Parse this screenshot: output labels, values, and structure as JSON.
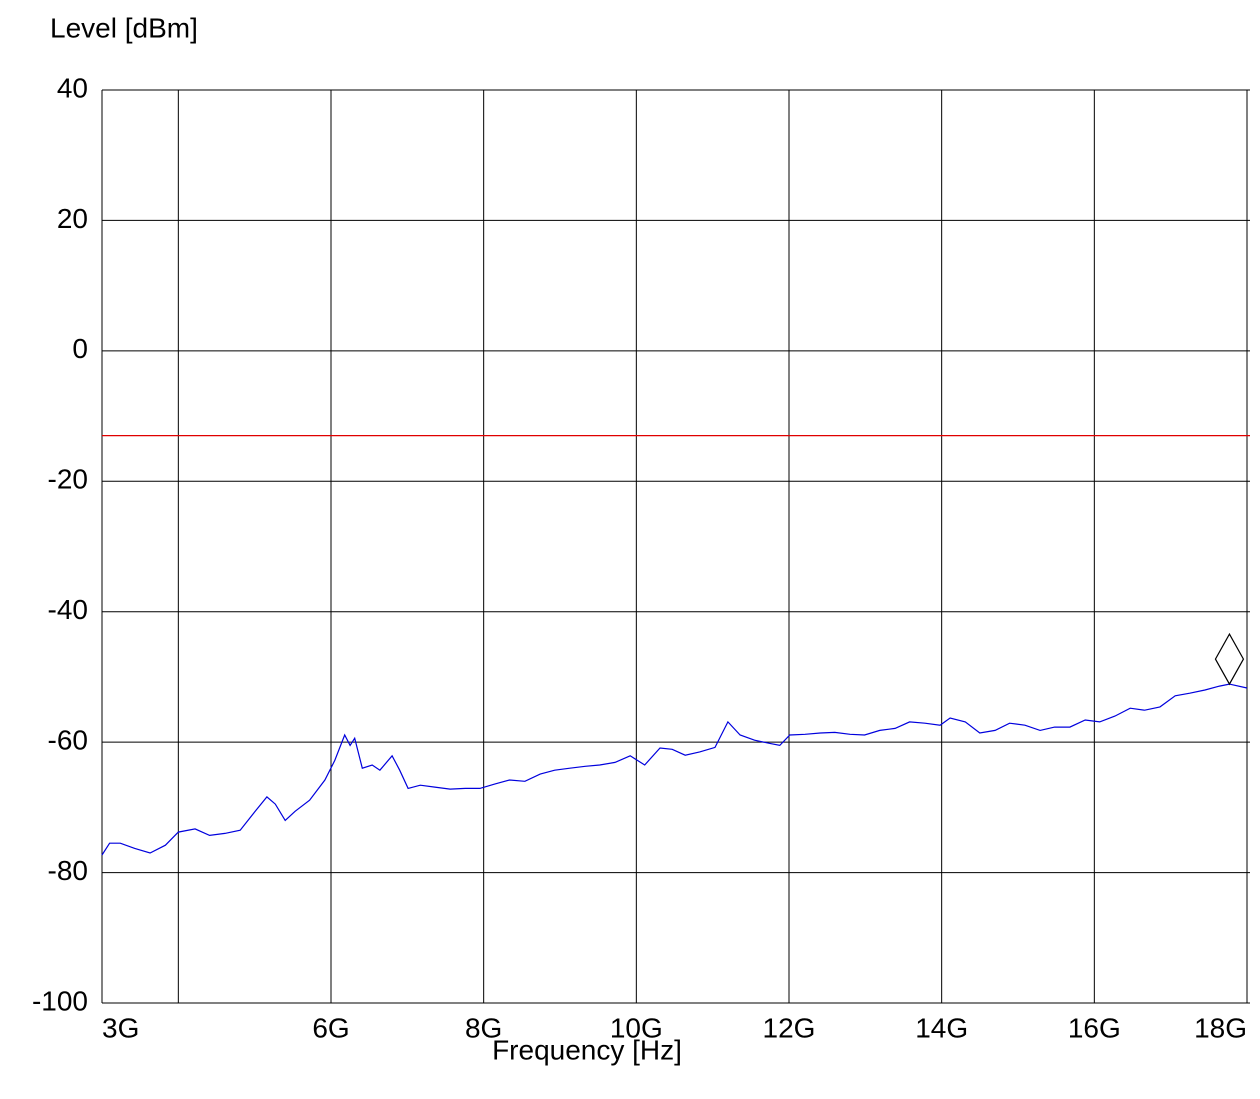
{
  "chart_data": {
    "type": "line",
    "ylabel": "Level [dBm]",
    "xlabel": "Frequency [Hz]",
    "xlim": [
      3000000000.0,
      18000000000.0
    ],
    "ylim": [
      -100,
      40
    ],
    "yticks": [
      40,
      20,
      0,
      -20,
      -40,
      -60,
      -80,
      -100
    ],
    "xticks": [
      {
        "value": 3000000000.0,
        "label": "3G"
      },
      {
        "value": 6000000000.0,
        "label": "6G"
      },
      {
        "value": 8000000000.0,
        "label": "8G"
      },
      {
        "value": 10000000000.0,
        "label": "10G"
      },
      {
        "value": 12000000000.0,
        "label": "12G"
      },
      {
        "value": 14000000000.0,
        "label": "14G"
      },
      {
        "value": 16000000000.0,
        "label": "16G"
      },
      {
        "value": 18000000000.0,
        "label": "18G"
      }
    ],
    "xgrid": [
      4000000000.0,
      6000000000.0,
      8000000000.0,
      10000000000.0,
      12000000000.0,
      14000000000.0,
      16000000000.0
    ],
    "grid": true,
    "limit_line": {
      "value": -13,
      "color": "#e00000"
    },
    "marker": {
      "x": 17770000000.0,
      "y": -51.1
    },
    "series": [
      {
        "color": "#0000dd",
        "x": [
          3000000000.0,
          3100000000.0,
          3240000000.0,
          3430000000.0,
          3630000000.0,
          3830000000.0,
          4000000000.0,
          4220000000.0,
          4410000000.0,
          4610000000.0,
          4810000000.0,
          5000000000.0,
          5160000000.0,
          5270000000.0,
          5400000000.0,
          5530000000.0,
          5720000000.0,
          5920000000.0,
          6050000000.0,
          6180000000.0,
          6250000000.0,
          6310000000.0,
          6410000000.0,
          6540000000.0,
          6640000000.0,
          6800000000.0,
          6900000000.0,
          7010000000.0,
          7170000000.0,
          7360000000.0,
          7560000000.0,
          7760000000.0,
          7950000000.0,
          8150000000.0,
          8340000000.0,
          8540000000.0,
          8740000000.0,
          8930000000.0,
          9130000000.0,
          9330000000.0,
          9520000000.0,
          9720000000.0,
          9920000000.0,
          10110000000.0,
          10310000000.0,
          10470000000.0,
          10640000000.0,
          10830000000.0,
          11030000000.0,
          11200000000.0,
          11360000000.0,
          11550000000.0,
          11750000000.0,
          11880000000.0,
          12010000000.0,
          12210000000.0,
          12410000000.0,
          12600000000.0,
          12800000000.0,
          12990000000.0,
          13190000000.0,
          13390000000.0,
          13580000000.0,
          13780000000.0,
          13980000000.0,
          14110000000.0,
          14310000000.0,
          14500000000.0,
          14700000000.0,
          14890000000.0,
          15090000000.0,
          15290000000.0,
          15480000000.0,
          15680000000.0,
          15880000000.0,
          16070000000.0,
          16270000000.0,
          16470000000.0,
          16660000000.0,
          16860000000.0,
          17060000000.0,
          17250000000.0,
          17450000000.0,
          17640000000.0,
          17770000000.0,
          18000000000.0
        ],
        "values": [
          -77.3,
          -75.5,
          -75.5,
          -76.3,
          -77.0,
          -75.8,
          -73.8,
          -73.3,
          -74.3,
          -74.0,
          -73.5,
          -70.7,
          -68.4,
          -69.5,
          -72.0,
          -70.6,
          -68.9,
          -65.8,
          -62.8,
          -58.9,
          -60.5,
          -59.4,
          -64.0,
          -63.5,
          -64.3,
          -62.1,
          -64.3,
          -67.1,
          -66.6,
          -66.9,
          -67.2,
          -67.1,
          -67.1,
          -66.4,
          -65.8,
          -66.0,
          -64.9,
          -64.3,
          -64.0,
          -63.7,
          -63.5,
          -63.1,
          -62.1,
          -63.5,
          -60.9,
          -61.1,
          -62.0,
          -61.5,
          -60.8,
          -56.9,
          -58.9,
          -59.7,
          -60.2,
          -60.5,
          -58.9,
          -58.8,
          -58.6,
          -58.5,
          -58.8,
          -58.9,
          -58.2,
          -57.9,
          -56.9,
          -57.1,
          -57.4,
          -56.3,
          -56.9,
          -58.6,
          -58.2,
          -57.1,
          -57.4,
          -58.2,
          -57.7,
          -57.7,
          -56.6,
          -56.9,
          -56.0,
          -54.8,
          -55.1,
          -54.6,
          -52.9,
          -52.5,
          -52.0,
          -51.4,
          -51.1,
          -51.7
        ]
      }
    ]
  }
}
